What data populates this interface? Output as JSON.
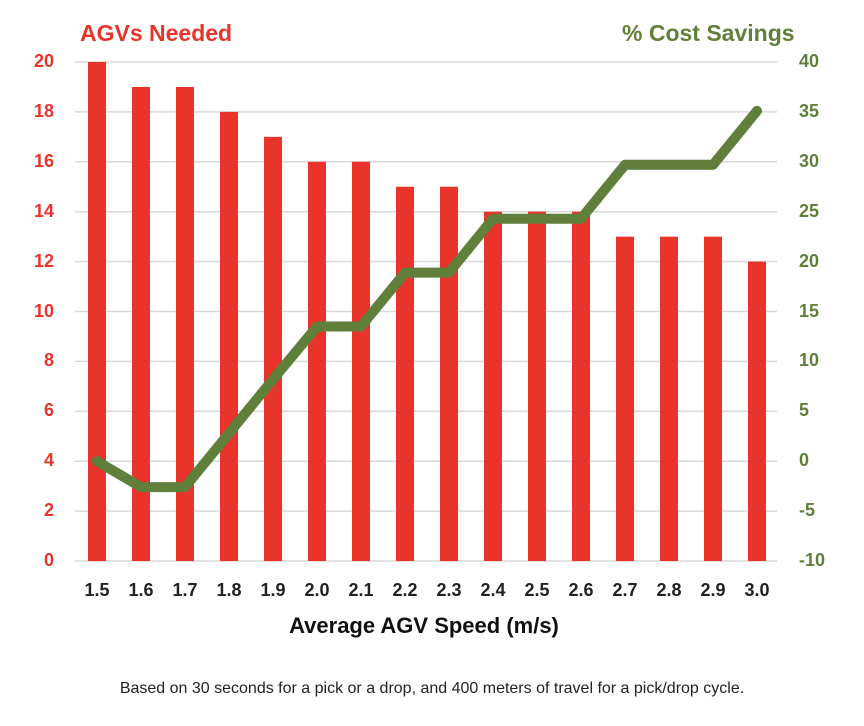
{
  "chart_data": {
    "type": "bar+line",
    "title": "",
    "xlabel": "Average AGV Speed (m/s)",
    "categories": [
      "1.5",
      "1.6",
      "1.7",
      "1.8",
      "1.9",
      "2.0",
      "2.1",
      "2.2",
      "2.3",
      "2.4",
      "2.5",
      "2.6",
      "2.7",
      "2.8",
      "2.9",
      "3.0"
    ],
    "series": [
      {
        "name": "AGVs Needed",
        "type": "bar",
        "axis": "left",
        "color": "#e8342a",
        "values": [
          20,
          19,
          19,
          18,
          17,
          16,
          16,
          15,
          15,
          14,
          14,
          14,
          13,
          13,
          13,
          12
        ]
      },
      {
        "name": "% Cost Savings",
        "type": "line",
        "axis": "right",
        "color": "#5f7f3a",
        "values": [
          0,
          -2.6,
          -2.6,
          2.8,
          8.2,
          13.5,
          13.5,
          18.9,
          18.9,
          24.3,
          24.3,
          24.3,
          29.7,
          29.7,
          29.7,
          35.1
        ]
      }
    ],
    "left_axis": {
      "label": "AGVs Needed",
      "ylim": [
        0,
        20
      ],
      "ticks": [
        "0",
        "2",
        "4",
        "6",
        "8",
        "10",
        "12",
        "14",
        "16",
        "18",
        "20"
      ]
    },
    "right_axis": {
      "label": "% Cost Savings",
      "ylim": [
        -10,
        40
      ],
      "ticks": [
        "-10",
        "-5",
        "0",
        "5",
        "10",
        "15",
        "20",
        "25",
        "30",
        "35",
        "40"
      ]
    },
    "grid": true,
    "legend": "none (axis titles colored by series)",
    "footnote": "Based on 30 seconds for a pick or a drop, and 400 meters of travel for a pick/drop cycle."
  },
  "labels": {
    "left_title": "AGVs Needed",
    "right_title": "% Cost Savings",
    "xlabel": "Average AGV Speed (m/s)",
    "footnote": "Based on 30 seconds for a pick or a drop, and 400 meters of travel for a pick/drop cycle."
  }
}
